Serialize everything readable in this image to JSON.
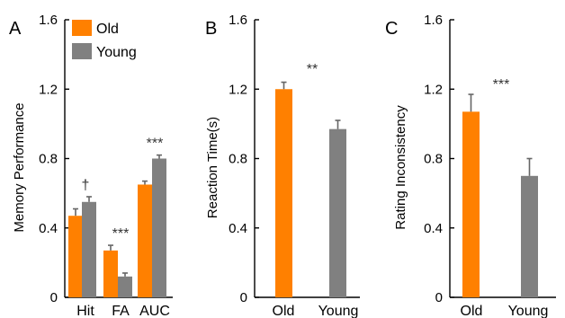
{
  "colors": {
    "old": "#FF8000",
    "young": "#808080",
    "error": "#666666"
  },
  "chart_data": [
    {
      "panel": "A",
      "type": "bar",
      "ylabel": "Memory Performance",
      "ylim": [
        0,
        1.6
      ],
      "yticks": [
        "0",
        "0.4",
        "0.8",
        "1.2",
        "1.6"
      ],
      "categories": [
        "Hit",
        "FA",
        "AUC"
      ],
      "legend": [
        "Old",
        "Young"
      ],
      "series": [
        {
          "name": "Old",
          "values": [
            0.47,
            0.27,
            0.65
          ],
          "errors": [
            0.04,
            0.03,
            0.02
          ]
        },
        {
          "name": "Young",
          "values": [
            0.55,
            0.12,
            0.8
          ],
          "errors": [
            0.03,
            0.02,
            0.02
          ]
        }
      ],
      "annotations": [
        "†",
        "***",
        "***"
      ]
    },
    {
      "panel": "B",
      "type": "bar",
      "ylabel": "Reaction Time(s)",
      "ylim": [
        0,
        1.6
      ],
      "yticks": [
        "0",
        "0.4",
        "0.8",
        "1.2",
        "1.6"
      ],
      "categories": [
        "Old",
        "Young"
      ],
      "values": [
        1.2,
        0.97
      ],
      "errors": [
        0.04,
        0.05
      ],
      "annotations": [
        "**"
      ]
    },
    {
      "panel": "C",
      "type": "bar",
      "ylabel": "Rating  Inconsistency",
      "ylim": [
        0,
        1.6
      ],
      "yticks": [
        "0",
        "0.4",
        "0.8",
        "1.2",
        "1.6"
      ],
      "categories": [
        "Old",
        "Young"
      ],
      "values": [
        1.07,
        0.7
      ],
      "errors": [
        0.1,
        0.1
      ],
      "annotations": [
        "***"
      ]
    }
  ]
}
